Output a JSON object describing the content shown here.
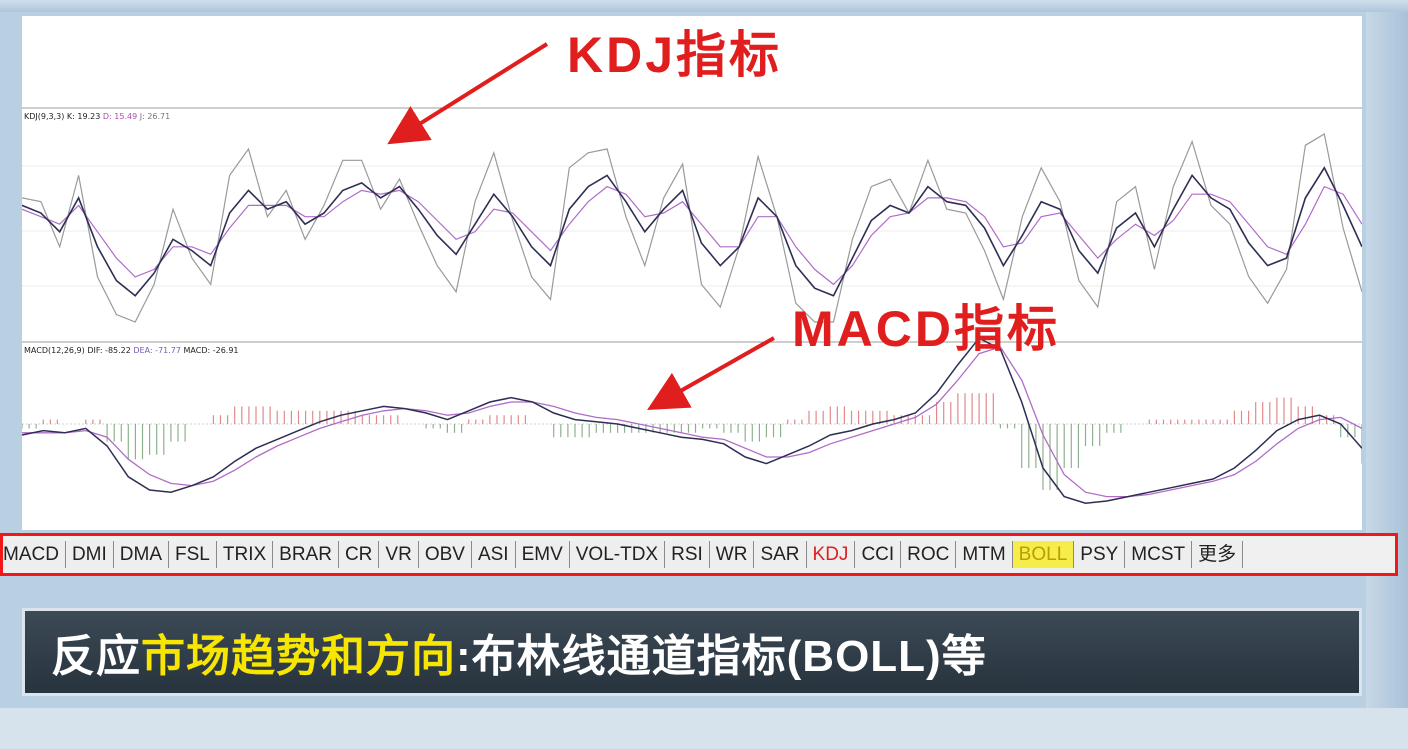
{
  "captions": {
    "kdj": "KDJ指标",
    "macd": "MACD指标"
  },
  "kdj_panel": {
    "name": "KDJ(9,3,3)",
    "k": "K: 19.23",
    "d": "D: 15.49",
    "j": "J: 26.71"
  },
  "macd_panel": {
    "name": "MACD(12,26,9)",
    "dif": "DIF: -85.22",
    "dea": "DEA: -71.77",
    "macd": "MACD: -26.91"
  },
  "tabs": [
    "MACD",
    "DMI",
    "DMA",
    "FSL",
    "TRIX",
    "BRAR",
    "CR",
    "VR",
    "OBV",
    "ASI",
    "EMV",
    "VOL-TDX",
    "RSI",
    "WR",
    "SAR",
    "KDJ",
    "CCI",
    "ROC",
    "MTM",
    "BOLL",
    "PSY",
    "MCST",
    "更多"
  ],
  "active_tab": "KDJ",
  "highlight_tab": "BOLL",
  "subtitle": {
    "part1": "反应",
    "part2_highlight": "市场趋势和方向",
    "part3": ":布林线通道指标(BOLL)等"
  },
  "colors": {
    "caption_red": "#e01e1e",
    "tabs_border": "#f21818",
    "highlight_yellow": "#f7e600",
    "k_line": "#2e2e55",
    "d_line": "#b06cc8",
    "j_line": "#9a9a9a",
    "macd_pos": "#e08a8a",
    "macd_neg": "#8fb08f"
  },
  "chart_data": [
    {
      "type": "line",
      "title": "",
      "series": [
        {
          "values": [
            62,
            58,
            48,
            66,
            40,
            22,
            14,
            26,
            44,
            38,
            30,
            58,
            70,
            60,
            64,
            52,
            58,
            70,
            74,
            66,
            72,
            60,
            46,
            36,
            52,
            68,
            56,
            40,
            30,
            60,
            72,
            78,
            64,
            48,
            60,
            70,
            42,
            30,
            40,
            66,
            56,
            30,
            18,
            14,
            34,
            54,
            62,
            58,
            72,
            64,
            62,
            50,
            30,
            46,
            64,
            60,
            38,
            26,
            50,
            58,
            40,
            60,
            78,
            66,
            60,
            42,
            30,
            34,
            66,
            82,
            62,
            40
          ]
        },
        {
          "values": [
            60,
            56,
            52,
            62,
            48,
            34,
            24,
            28,
            40,
            40,
            36,
            50,
            62,
            62,
            62,
            56,
            56,
            64,
            70,
            68,
            70,
            64,
            54,
            44,
            48,
            60,
            58,
            48,
            38,
            52,
            64,
            72,
            68,
            56,
            58,
            64,
            52,
            40,
            40,
            56,
            56,
            40,
            28,
            20,
            30,
            46,
            56,
            58,
            66,
            66,
            64,
            56,
            40,
            42,
            56,
            58,
            46,
            34,
            44,
            52,
            46,
            54,
            68,
            68,
            64,
            52,
            40,
            36,
            52,
            72,
            68,
            52
          ]
        },
        {
          "values": [
            66,
            64,
            40,
            78,
            24,
            4,
            0,
            20,
            60,
            34,
            20,
            78,
            92,
            56,
            70,
            44,
            62,
            86,
            86,
            60,
            76,
            52,
            30,
            16,
            64,
            90,
            54,
            24,
            12,
            82,
            90,
            92,
            56,
            30,
            66,
            84,
            20,
            8,
            40,
            88,
            56,
            10,
            0,
            0,
            44,
            72,
            76,
            58,
            86,
            60,
            58,
            38,
            12,
            56,
            82,
            64,
            22,
            8,
            64,
            72,
            28,
            72,
            96,
            62,
            52,
            24,
            10,
            28,
            94,
            100,
            50,
            16
          ]
        }
      ]
    },
    {
      "type": "line",
      "title": "",
      "series": [
        {
          "values": [
            -10,
            -6,
            -8,
            -4,
            -20,
            -48,
            -60,
            -62,
            -56,
            -48,
            -34,
            -22,
            -14,
            -6,
            2,
            8,
            12,
            16,
            14,
            10,
            4,
            12,
            20,
            24,
            20,
            10,
            4,
            2,
            0,
            -4,
            -8,
            -12,
            -14,
            -18,
            -30,
            -36,
            -28,
            -20,
            -10,
            -6,
            0,
            4,
            10,
            28,
            54,
            78,
            68,
            20,
            -40,
            -66,
            -72,
            -70,
            -66,
            -62,
            -58,
            -54,
            -50,
            -40,
            -24,
            -6,
            4,
            8,
            0,
            -22
          ]
        },
        {
          "values": [
            -8,
            -8,
            -8,
            -6,
            -12,
            -32,
            -46,
            -54,
            -56,
            -52,
            -42,
            -30,
            -20,
            -12,
            -4,
            2,
            8,
            12,
            14,
            12,
            8,
            10,
            16,
            20,
            20,
            16,
            10,
            6,
            4,
            0,
            -4,
            -8,
            -12,
            -14,
            -22,
            -30,
            -30,
            -26,
            -18,
            -12,
            -6,
            0,
            6,
            18,
            40,
            64,
            70,
            40,
            -10,
            -46,
            -62,
            -66,
            -66,
            -64,
            -60,
            -56,
            -52,
            -46,
            -34,
            -18,
            -4,
            4,
            6,
            -4
          ]
        }
      ]
    }
  ]
}
